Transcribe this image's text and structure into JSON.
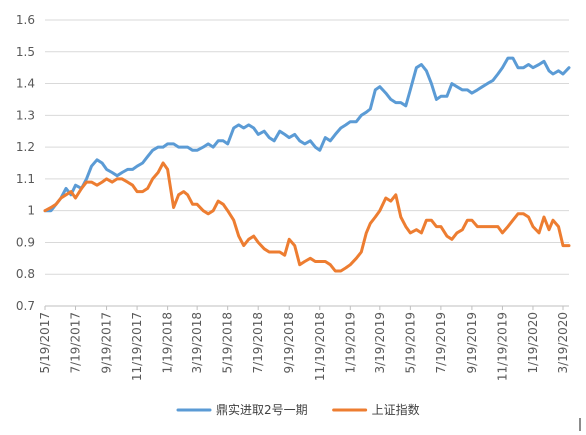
{
  "chart_data": {
    "type": "line",
    "title": "",
    "xlabel": "",
    "ylabel": "",
    "ylim": [
      0.7,
      1.6
    ],
    "y_ticks": [
      "0.7",
      "0.8",
      "0.9",
      "1",
      "1.1",
      "1.2",
      "1.3",
      "1.4",
      "1.5",
      "1.6"
    ],
    "x_range": [
      "2017-05-19",
      "2020-03-31"
    ],
    "x_ticks": [
      "5/19/2017",
      "7/19/2017",
      "9/19/2017",
      "11/19/2017",
      "1/19/2018",
      "3/19/2018",
      "5/19/2018",
      "7/19/2018",
      "9/19/2018",
      "11/19/2018",
      "1/19/2019",
      "3/19/2019",
      "5/19/2019",
      "7/19/2019",
      "9/19/2019",
      "11/19/2019",
      "1/19/2020",
      "3/19/2020"
    ],
    "grid": "horizontal",
    "legend_position": "bottom",
    "series": [
      {
        "name": "鼎实进取2号一期",
        "color": "#5B9BD5",
        "points": [
          [
            "2017-05-19",
            1.0
          ],
          [
            "2017-05-31",
            1.0
          ],
          [
            "2017-06-10",
            1.02
          ],
          [
            "2017-06-20",
            1.04
          ],
          [
            "2017-06-30",
            1.07
          ],
          [
            "2017-07-10",
            1.05
          ],
          [
            "2017-07-19",
            1.08
          ],
          [
            "2017-07-31",
            1.07
          ],
          [
            "2017-08-10",
            1.1
          ],
          [
            "2017-08-20",
            1.14
          ],
          [
            "2017-08-31",
            1.16
          ],
          [
            "2017-09-10",
            1.15
          ],
          [
            "2017-09-19",
            1.13
          ],
          [
            "2017-09-30",
            1.12
          ],
          [
            "2017-10-10",
            1.11
          ],
          [
            "2017-10-20",
            1.12
          ],
          [
            "2017-10-31",
            1.13
          ],
          [
            "2017-11-10",
            1.13
          ],
          [
            "2017-11-19",
            1.14
          ],
          [
            "2017-11-30",
            1.15
          ],
          [
            "2017-12-10",
            1.17
          ],
          [
            "2017-12-20",
            1.19
          ],
          [
            "2017-12-31",
            1.2
          ],
          [
            "2018-01-10",
            1.2
          ],
          [
            "2018-01-19",
            1.21
          ],
          [
            "2018-01-31",
            1.21
          ],
          [
            "2018-02-10",
            1.2
          ],
          [
            "2018-02-20",
            1.2
          ],
          [
            "2018-02-28",
            1.2
          ],
          [
            "2018-03-10",
            1.19
          ],
          [
            "2018-03-19",
            1.19
          ],
          [
            "2018-03-31",
            1.2
          ],
          [
            "2018-04-10",
            1.21
          ],
          [
            "2018-04-20",
            1.2
          ],
          [
            "2018-04-30",
            1.22
          ],
          [
            "2018-05-10",
            1.22
          ],
          [
            "2018-05-19",
            1.21
          ],
          [
            "2018-05-31",
            1.26
          ],
          [
            "2018-06-10",
            1.27
          ],
          [
            "2018-06-20",
            1.26
          ],
          [
            "2018-06-30",
            1.27
          ],
          [
            "2018-07-10",
            1.26
          ],
          [
            "2018-07-19",
            1.24
          ],
          [
            "2018-07-31",
            1.25
          ],
          [
            "2018-08-10",
            1.23
          ],
          [
            "2018-08-20",
            1.22
          ],
          [
            "2018-08-31",
            1.25
          ],
          [
            "2018-09-10",
            1.24
          ],
          [
            "2018-09-19",
            1.23
          ],
          [
            "2018-09-30",
            1.24
          ],
          [
            "2018-10-10",
            1.22
          ],
          [
            "2018-10-20",
            1.21
          ],
          [
            "2018-10-31",
            1.22
          ],
          [
            "2018-11-10",
            1.2
          ],
          [
            "2018-11-19",
            1.19
          ],
          [
            "2018-11-30",
            1.23
          ],
          [
            "2018-12-10",
            1.22
          ],
          [
            "2018-12-20",
            1.24
          ],
          [
            "2018-12-31",
            1.26
          ],
          [
            "2019-01-10",
            1.27
          ],
          [
            "2019-01-19",
            1.28
          ],
          [
            "2019-01-31",
            1.28
          ],
          [
            "2019-02-10",
            1.3
          ],
          [
            "2019-02-20",
            1.31
          ],
          [
            "2019-02-28",
            1.32
          ],
          [
            "2019-03-10",
            1.38
          ],
          [
            "2019-03-19",
            1.39
          ],
          [
            "2019-03-31",
            1.37
          ],
          [
            "2019-04-10",
            1.35
          ],
          [
            "2019-04-20",
            1.34
          ],
          [
            "2019-04-30",
            1.34
          ],
          [
            "2019-05-10",
            1.33
          ],
          [
            "2019-05-19",
            1.38
          ],
          [
            "2019-05-31",
            1.45
          ],
          [
            "2019-06-10",
            1.46
          ],
          [
            "2019-06-20",
            1.44
          ],
          [
            "2019-06-30",
            1.4
          ],
          [
            "2019-07-10",
            1.35
          ],
          [
            "2019-07-19",
            1.36
          ],
          [
            "2019-07-31",
            1.36
          ],
          [
            "2019-08-10",
            1.4
          ],
          [
            "2019-08-20",
            1.39
          ],
          [
            "2019-08-31",
            1.38
          ],
          [
            "2019-09-10",
            1.38
          ],
          [
            "2019-09-19",
            1.37
          ],
          [
            "2019-09-30",
            1.38
          ],
          [
            "2019-10-10",
            1.39
          ],
          [
            "2019-10-20",
            1.4
          ],
          [
            "2019-10-31",
            1.41
          ],
          [
            "2019-11-10",
            1.43
          ],
          [
            "2019-11-19",
            1.45
          ],
          [
            "2019-11-30",
            1.48
          ],
          [
            "2019-12-10",
            1.48
          ],
          [
            "2019-12-20",
            1.45
          ],
          [
            "2019-12-31",
            1.45
          ],
          [
            "2020-01-10",
            1.46
          ],
          [
            "2020-01-19",
            1.45
          ],
          [
            "2020-01-31",
            1.46
          ],
          [
            "2020-02-10",
            1.47
          ],
          [
            "2020-02-20",
            1.44
          ],
          [
            "2020-02-28",
            1.43
          ],
          [
            "2020-03-10",
            1.44
          ],
          [
            "2020-03-19",
            1.43
          ],
          [
            "2020-03-31",
            1.45
          ]
        ]
      },
      {
        "name": "上证指数",
        "color": "#ED7D31",
        "points": [
          [
            "2017-05-19",
            1.0
          ],
          [
            "2017-05-31",
            1.01
          ],
          [
            "2017-06-10",
            1.02
          ],
          [
            "2017-06-20",
            1.04
          ],
          [
            "2017-06-30",
            1.05
          ],
          [
            "2017-07-10",
            1.06
          ],
          [
            "2017-07-19",
            1.04
          ],
          [
            "2017-07-31",
            1.07
          ],
          [
            "2017-08-10",
            1.09
          ],
          [
            "2017-08-20",
            1.09
          ],
          [
            "2017-08-31",
            1.08
          ],
          [
            "2017-09-10",
            1.09
          ],
          [
            "2017-09-19",
            1.1
          ],
          [
            "2017-09-30",
            1.09
          ],
          [
            "2017-10-10",
            1.1
          ],
          [
            "2017-10-20",
            1.1
          ],
          [
            "2017-10-31",
            1.09
          ],
          [
            "2017-11-10",
            1.08
          ],
          [
            "2017-11-19",
            1.06
          ],
          [
            "2017-11-30",
            1.06
          ],
          [
            "2017-12-10",
            1.07
          ],
          [
            "2017-12-20",
            1.1
          ],
          [
            "2017-12-31",
            1.12
          ],
          [
            "2018-01-10",
            1.15
          ],
          [
            "2018-01-19",
            1.13
          ],
          [
            "2018-01-31",
            1.01
          ],
          [
            "2018-02-10",
            1.05
          ],
          [
            "2018-02-20",
            1.06
          ],
          [
            "2018-02-28",
            1.05
          ],
          [
            "2018-03-10",
            1.02
          ],
          [
            "2018-03-19",
            1.02
          ],
          [
            "2018-03-31",
            1.0
          ],
          [
            "2018-04-10",
            0.99
          ],
          [
            "2018-04-20",
            1.0
          ],
          [
            "2018-04-30",
            1.03
          ],
          [
            "2018-05-10",
            1.02
          ],
          [
            "2018-05-19",
            1.0
          ],
          [
            "2018-05-31",
            0.97
          ],
          [
            "2018-06-10",
            0.92
          ],
          [
            "2018-06-20",
            0.89
          ],
          [
            "2018-06-30",
            0.91
          ],
          [
            "2018-07-10",
            0.92
          ],
          [
            "2018-07-19",
            0.9
          ],
          [
            "2018-07-31",
            0.88
          ],
          [
            "2018-08-10",
            0.87
          ],
          [
            "2018-08-20",
            0.87
          ],
          [
            "2018-08-31",
            0.87
          ],
          [
            "2018-09-10",
            0.86
          ],
          [
            "2018-09-19",
            0.91
          ],
          [
            "2018-09-30",
            0.89
          ],
          [
            "2018-10-10",
            0.83
          ],
          [
            "2018-10-20",
            0.84
          ],
          [
            "2018-10-31",
            0.85
          ],
          [
            "2018-11-10",
            0.84
          ],
          [
            "2018-11-19",
            0.84
          ],
          [
            "2018-11-30",
            0.84
          ],
          [
            "2018-12-10",
            0.83
          ],
          [
            "2018-12-20",
            0.81
          ],
          [
            "2018-12-31",
            0.81
          ],
          [
            "2019-01-10",
            0.82
          ],
          [
            "2019-01-19",
            0.83
          ],
          [
            "2019-01-31",
            0.85
          ],
          [
            "2019-02-10",
            0.87
          ],
          [
            "2019-02-20",
            0.93
          ],
          [
            "2019-02-28",
            0.96
          ],
          [
            "2019-03-10",
            0.98
          ],
          [
            "2019-03-19",
            1.0
          ],
          [
            "2019-03-31",
            1.04
          ],
          [
            "2019-04-10",
            1.03
          ],
          [
            "2019-04-20",
            1.05
          ],
          [
            "2019-04-30",
            0.98
          ],
          [
            "2019-05-10",
            0.95
          ],
          [
            "2019-05-19",
            0.93
          ],
          [
            "2019-05-31",
            0.94
          ],
          [
            "2019-06-10",
            0.93
          ],
          [
            "2019-06-20",
            0.97
          ],
          [
            "2019-06-30",
            0.97
          ],
          [
            "2019-07-10",
            0.95
          ],
          [
            "2019-07-19",
            0.95
          ],
          [
            "2019-07-31",
            0.92
          ],
          [
            "2019-08-10",
            0.91
          ],
          [
            "2019-08-20",
            0.93
          ],
          [
            "2019-08-31",
            0.94
          ],
          [
            "2019-09-10",
            0.97
          ],
          [
            "2019-09-19",
            0.97
          ],
          [
            "2019-09-30",
            0.95
          ],
          [
            "2019-10-10",
            0.95
          ],
          [
            "2019-10-20",
            0.95
          ],
          [
            "2019-10-31",
            0.95
          ],
          [
            "2019-11-10",
            0.95
          ],
          [
            "2019-11-19",
            0.93
          ],
          [
            "2019-11-30",
            0.95
          ],
          [
            "2019-12-10",
            0.97
          ],
          [
            "2019-12-20",
            0.99
          ],
          [
            "2019-12-31",
            0.99
          ],
          [
            "2020-01-10",
            0.98
          ],
          [
            "2020-01-19",
            0.95
          ],
          [
            "2020-01-31",
            0.93
          ],
          [
            "2020-02-10",
            0.98
          ],
          [
            "2020-02-20",
            0.94
          ],
          [
            "2020-02-28",
            0.97
          ],
          [
            "2020-03-10",
            0.95
          ],
          [
            "2020-03-19",
            0.89
          ],
          [
            "2020-03-31",
            0.89
          ]
        ]
      }
    ]
  }
}
